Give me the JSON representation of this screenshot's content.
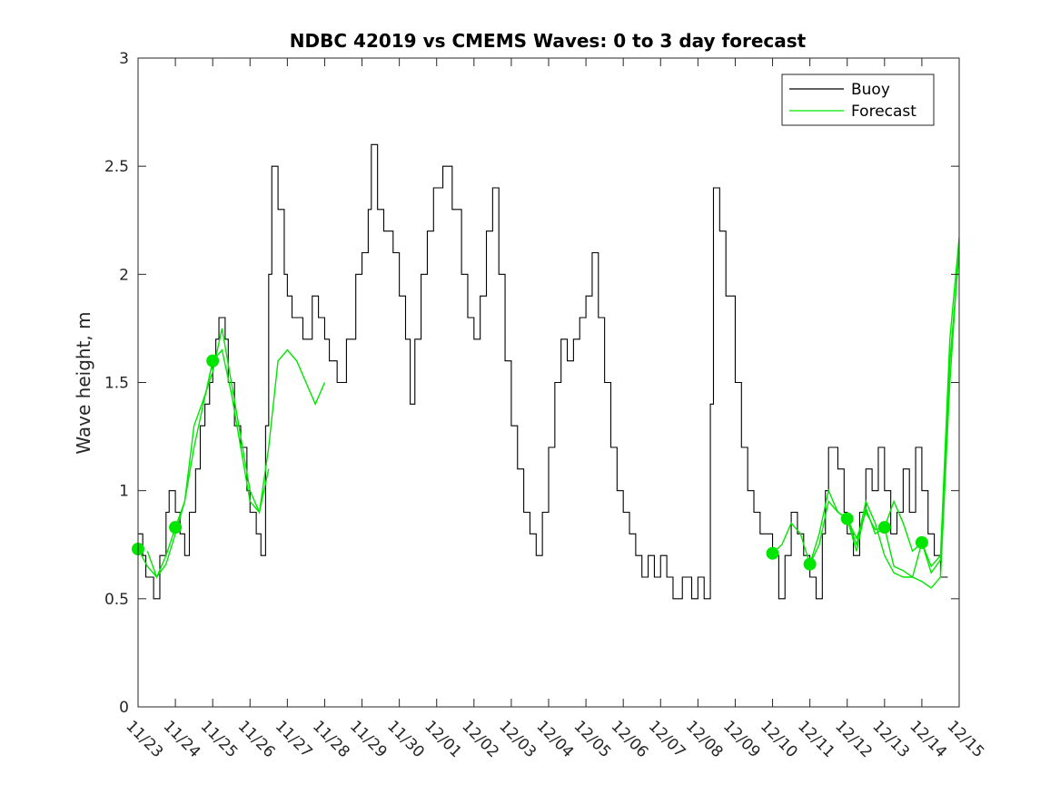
{
  "chart_data": {
    "type": "line",
    "title": "NDBC 42019 vs CMEMS Waves: 0 to 3 day forecast",
    "xlabel": "",
    "ylabel": "Wave height, m",
    "ylim": [
      0,
      3
    ],
    "xlim": [
      "11/23",
      "12/15"
    ],
    "x_tick_labels": [
      "11/23",
      "11/24",
      "11/25",
      "11/26",
      "11/27",
      "11/28",
      "11/29",
      "11/30",
      "12/01",
      "12/02",
      "12/03",
      "12/04",
      "12/05",
      "12/06",
      "12/07",
      "12/08",
      "12/09",
      "12/10",
      "12/11",
      "12/12",
      "12/13",
      "12/14",
      "12/15"
    ],
    "y_tick_labels": [
      "0",
      "0.5",
      "1",
      "1.5",
      "2",
      "2.5",
      "3"
    ],
    "y_ticks": [
      0,
      0.5,
      1,
      1.5,
      2,
      2.5,
      3
    ],
    "grid": false,
    "legend_position": "top-right",
    "series": [
      {
        "name": "Buoy",
        "color": "#000000",
        "style": "step",
        "points": [
          [
            "11/23",
            0.8
          ],
          [
            "11/23 03:00",
            0.7
          ],
          [
            "11/23 05:00",
            0.6
          ],
          [
            "11/23 10:00",
            0.5
          ],
          [
            "11/23 14:00",
            0.7
          ],
          [
            "11/23 18:00",
            0.9
          ],
          [
            "11/23 20:00",
            1.0
          ],
          [
            "11/24",
            0.9
          ],
          [
            "11/24 03:00",
            0.8
          ],
          [
            "11/24 06:00",
            0.7
          ],
          [
            "11/24 09:00",
            0.9
          ],
          [
            "11/24 13:00",
            1.1
          ],
          [
            "11/24 16:00",
            1.3
          ],
          [
            "11/24 19:00",
            1.4
          ],
          [
            "11/24 22:00",
            1.5
          ],
          [
            "11/25",
            1.6
          ],
          [
            "11/25 02:00",
            1.7
          ],
          [
            "11/25 04:00",
            1.8
          ],
          [
            "11/25 08:00",
            1.7
          ],
          [
            "11/25 10:00",
            1.5
          ],
          [
            "11/25 14:00",
            1.3
          ],
          [
            "11/25 18:00",
            1.2
          ],
          [
            "11/25 22:00",
            1.0
          ],
          [
            "11/26",
            0.9
          ],
          [
            "11/26 04:00",
            0.8
          ],
          [
            "11/26 07:00",
            0.7
          ],
          [
            "11/26 10:00",
            1.3
          ],
          [
            "11/26 12:00",
            2.0
          ],
          [
            "11/26 14:00",
            2.5
          ],
          [
            "11/26 18:00",
            2.3
          ],
          [
            "11/26 22:00",
            2.0
          ],
          [
            "11/27",
            1.9
          ],
          [
            "11/27 03:00",
            1.8
          ],
          [
            "11/27 10:00",
            1.7
          ],
          [
            "11/27 16:00",
            1.9
          ],
          [
            "11/27 20:00",
            1.8
          ],
          [
            "11/28",
            1.7
          ],
          [
            "11/28 03:00",
            1.6
          ],
          [
            "11/28 08:00",
            1.5
          ],
          [
            "11/28 14:00",
            1.7
          ],
          [
            "11/28 20:00",
            2.0
          ],
          [
            "11/29",
            2.1
          ],
          [
            "11/29 04:00",
            2.3
          ],
          [
            "11/29 06:00",
            2.6
          ],
          [
            "11/29 10:00",
            2.3
          ],
          [
            "11/29 14:00",
            2.2
          ],
          [
            "11/29 20:00",
            2.1
          ],
          [
            "11/30",
            1.9
          ],
          [
            "11/30 04:00",
            1.7
          ],
          [
            "11/30 07:00",
            1.4
          ],
          [
            "11/30 10:00",
            1.7
          ],
          [
            "11/30 14:00",
            2.0
          ],
          [
            "11/30 18:00",
            2.2
          ],
          [
            "11/30 22:00",
            2.4
          ],
          [
            "12/01 04:00",
            2.5
          ],
          [
            "12/01 10:00",
            2.3
          ],
          [
            "12/01 16:00",
            2.0
          ],
          [
            "12/01 20:00",
            1.8
          ],
          [
            "12/02",
            1.7
          ],
          [
            "12/02 04:00",
            1.9
          ],
          [
            "12/02 08:00",
            2.2
          ],
          [
            "12/02 12:00",
            2.4
          ],
          [
            "12/02 16:00",
            2.0
          ],
          [
            "12/02 20:00",
            1.6
          ],
          [
            "12/03",
            1.3
          ],
          [
            "12/03 04:00",
            1.1
          ],
          [
            "12/03 08:00",
            0.9
          ],
          [
            "12/03 12:00",
            0.8
          ],
          [
            "12/03 16:00",
            0.7
          ],
          [
            "12/03 20:00",
            0.9
          ],
          [
            "12/04",
            1.2
          ],
          [
            "12/04 04:00",
            1.5
          ],
          [
            "12/04 08:00",
            1.7
          ],
          [
            "12/04 12:00",
            1.6
          ],
          [
            "12/04 16:00",
            1.7
          ],
          [
            "12/04 20:00",
            1.8
          ],
          [
            "12/05",
            1.9
          ],
          [
            "12/05 04:00",
            2.1
          ],
          [
            "12/05 08:00",
            1.8
          ],
          [
            "12/05 12:00",
            1.5
          ],
          [
            "12/05 16:00",
            1.2
          ],
          [
            "12/05 20:00",
            1.0
          ],
          [
            "12/06",
            0.9
          ],
          [
            "12/06 04:00",
            0.8
          ],
          [
            "12/06 08:00",
            0.7
          ],
          [
            "12/06 12:00",
            0.6
          ],
          [
            "12/06 16:00",
            0.7
          ],
          [
            "12/06 20:00",
            0.6
          ],
          [
            "12/07",
            0.7
          ],
          [
            "12/07 04:00",
            0.6
          ],
          [
            "12/07 08:00",
            0.5
          ],
          [
            "12/07 14:00",
            0.6
          ],
          [
            "12/07 20:00",
            0.5
          ],
          [
            "12/08",
            0.6
          ],
          [
            "12/08 04:00",
            0.5
          ],
          [
            "12/08 08:00",
            1.4
          ],
          [
            "12/08 10:00",
            2.4
          ],
          [
            "12/08 14:00",
            2.2
          ],
          [
            "12/08 18:00",
            1.9
          ],
          [
            "12/09",
            1.5
          ],
          [
            "12/09 04:00",
            1.2
          ],
          [
            "12/09 08:00",
            1.0
          ],
          [
            "12/09 12:00",
            0.9
          ],
          [
            "12/09 16:00",
            0.8
          ],
          [
            "12/09 22:00",
            0.8
          ],
          [
            "12/10",
            0.7
          ],
          [
            "12/10 04:00",
            0.5
          ],
          [
            "12/10 08:00",
            0.7
          ],
          [
            "12/10 12:00",
            0.9
          ],
          [
            "12/10 16:00",
            0.8
          ],
          [
            "12/10 20:00",
            0.7
          ],
          [
            "12/11",
            0.6
          ],
          [
            "12/11 04:00",
            0.5
          ],
          [
            "12/11 08:00",
            0.8
          ],
          [
            "12/11 10:00",
            1.0
          ],
          [
            "12/11 12:00",
            1.2
          ],
          [
            "12/11 18:00",
            1.1
          ],
          [
            "12/11 22:00",
            0.9
          ],
          [
            "12/12",
            0.8
          ],
          [
            "12/12 04:00",
            0.7
          ],
          [
            "12/12 08:00",
            0.9
          ],
          [
            "12/12 12:00",
            1.1
          ],
          [
            "12/12 16:00",
            1.0
          ],
          [
            "12/12 20:00",
            1.2
          ],
          [
            "12/13",
            1.0
          ],
          [
            "12/13 04:00",
            0.8
          ],
          [
            "12/13 08:00",
            0.9
          ],
          [
            "12/13 12:00",
            1.1
          ],
          [
            "12/13 16:00",
            0.9
          ],
          [
            "12/13 20:00",
            1.2
          ],
          [
            "12/14",
            1.0
          ],
          [
            "12/14 04:00",
            0.8
          ],
          [
            "12/14 08:00",
            0.7
          ],
          [
            "12/14 12:00",
            0.6
          ]
        ]
      },
      {
        "name": "Forecast",
        "color": "#00e600",
        "style": "line",
        "runs": [
          {
            "start": "11/23",
            "points": [
              [
                "11/23",
                0.73
              ],
              [
                "11/23 06:00",
                0.65
              ],
              [
                "11/23 12:00",
                0.6
              ],
              [
                "11/23 18:00",
                0.7
              ],
              [
                "11/24",
                0.83
              ],
              [
                "11/24 06:00",
                0.95
              ],
              [
                "11/24 12:00",
                1.2
              ],
              [
                "11/24 18:00",
                1.4
              ],
              [
                "11/25",
                1.6
              ],
              [
                "11/25 06:00",
                1.65
              ],
              [
                "11/25 12:00",
                1.45
              ],
              [
                "11/25 18:00",
                1.2
              ],
              [
                "11/26",
                0.95
              ],
              [
                "11/26 06:00",
                0.9
              ],
              [
                "11/26 12:00",
                1.2
              ],
              [
                "11/26 18:00",
                1.6
              ],
              [
                "11/27",
                1.65
              ],
              [
                "11/27 06:00",
                1.6
              ],
              [
                "11/27 12:00",
                1.5
              ],
              [
                "11/27 18:00",
                1.4
              ],
              [
                "11/28",
                1.5
              ]
            ]
          },
          {
            "start": "11/24",
            "points": [
              [
                "11/23 06:00",
                0.72
              ],
              [
                "11/23 12:00",
                0.6
              ],
              [
                "11/23 18:00",
                0.66
              ],
              [
                "11/24",
                0.8
              ],
              [
                "11/24 06:00",
                0.95
              ],
              [
                "11/24 12:00",
                1.3
              ],
              [
                "11/24 18:00",
                1.42
              ],
              [
                "11/25",
                1.55
              ],
              [
                "11/25 06:00",
                1.75
              ],
              [
                "11/25 12:00",
                1.5
              ],
              [
                "11/25 18:00",
                1.25
              ],
              [
                "11/26",
                1.0
              ],
              [
                "11/26 06:00",
                0.9
              ],
              [
                "11/26 12:00",
                1.1
              ]
            ]
          },
          {
            "start": "12/10",
            "points": [
              [
                "12/10",
                0.71
              ],
              [
                "12/10 06:00",
                0.75
              ],
              [
                "12/10 12:00",
                0.85
              ],
              [
                "12/10 18:00",
                0.8
              ],
              [
                "12/11",
                0.66
              ],
              [
                "12/11 06:00",
                0.75
              ],
              [
                "12/11 12:00",
                0.95
              ],
              [
                "12/11 18:00",
                0.9
              ],
              [
                "12/12",
                0.87
              ],
              [
                "12/12 06:00",
                0.75
              ],
              [
                "12/12 12:00",
                0.95
              ],
              [
                "12/12 18:00",
                0.85
              ],
              [
                "12/13",
                0.7
              ],
              [
                "12/13 06:00",
                0.62
              ],
              [
                "12/13 12:00",
                0.6
              ],
              [
                "12/13 18:00",
                0.6
              ],
              [
                "12/14",
                0.58
              ],
              [
                "12/14 06:00",
                0.55
              ],
              [
                "12/14 12:00",
                0.6
              ],
              [
                "12/14 18:00",
                1.5
              ],
              [
                "12/15",
                2.15
              ]
            ]
          },
          {
            "start": "12/11",
            "points": [
              [
                "12/11",
                0.66
              ],
              [
                "12/11 06:00",
                0.8
              ],
              [
                "12/11 12:00",
                1.0
              ],
              [
                "12/11 18:00",
                0.9
              ],
              [
                "12/12",
                0.87
              ],
              [
                "12/12 06:00",
                0.72
              ],
              [
                "12/12 12:00",
                0.92
              ],
              [
                "12/12 18:00",
                0.8
              ],
              [
                "12/13",
                0.83
              ],
              [
                "12/13 06:00",
                0.65
              ],
              [
                "12/13 12:00",
                0.63
              ],
              [
                "12/13 18:00",
                0.6
              ],
              [
                "12/14",
                0.76
              ],
              [
                "12/14 06:00",
                0.62
              ],
              [
                "12/14 12:00",
                0.68
              ],
              [
                "12/14 18:00",
                1.6
              ],
              [
                "12/15",
                2.1
              ]
            ]
          },
          {
            "start": "12/12",
            "points": [
              [
                "12/12",
                0.87
              ],
              [
                "12/12 06:00",
                0.78
              ],
              [
                "12/12 12:00",
                0.9
              ],
              [
                "12/12 18:00",
                0.82
              ],
              [
                "12/13",
                0.83
              ],
              [
                "12/13 06:00",
                0.95
              ],
              [
                "12/13 12:00",
                0.85
              ],
              [
                "12/13 18:00",
                0.72
              ],
              [
                "12/14",
                0.76
              ],
              [
                "12/14 06:00",
                0.65
              ],
              [
                "12/14 12:00",
                0.7
              ],
              [
                "12/14 18:00",
                1.7
              ],
              [
                "12/15",
                2.17
              ]
            ]
          }
        ],
        "start_markers": [
          [
            "11/23",
            0.73
          ],
          [
            "11/24",
            0.83
          ],
          [
            "11/25",
            1.6
          ],
          [
            "12/10",
            0.71
          ],
          [
            "12/11",
            0.66
          ],
          [
            "12/12",
            0.87
          ],
          [
            "12/13",
            0.83
          ],
          [
            "12/14",
            0.76
          ]
        ]
      }
    ]
  }
}
